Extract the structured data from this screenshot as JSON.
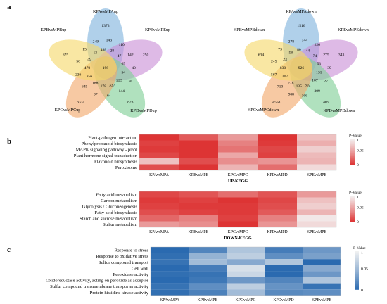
{
  "panels": {
    "a": "a",
    "b": "b",
    "c": "c"
  },
  "colors": {
    "venn": [
      "#7fb3dd",
      "#c98fd6",
      "#7fcf96",
      "#f2a86a",
      "#f6d86a"
    ],
    "up_low": "#dd3434",
    "up_high": "#f4f4f4",
    "go_low": "#2a6ab0",
    "go_high": "#f2f2f2"
  },
  "venn_up": {
    "sets": [
      "KPAvsMPAup",
      "KPEvsMPEup",
      "KPDvsMPDup",
      "KPCvsMPCup",
      "KPBvsMPBup"
    ],
    "unique": [
      "1373",
      "250",
      "823",
      "3331",
      "675"
    ],
    "inner": [
      "143",
      "28",
      "110",
      "47",
      "142",
      "65",
      "40",
      "54",
      "56",
      "223",
      "144",
      "337",
      "64",
      "178",
      "97",
      "188",
      "645",
      "856",
      "236",
      "470",
      "56",
      "49",
      "15",
      "13",
      "249",
      "488"
    ],
    "center": "198"
  },
  "venn_down": {
    "sets": [
      "KPAvsMPAdown",
      "KPEvsMPEdown",
      "KPDvsMPDdown",
      "KPCvsMPCdown",
      "KPBvsMPBdown"
    ],
    "unique": [
      "1516",
      "343",
      "405",
      "4558",
      "634"
    ],
    "inner": [
      "144",
      "44",
      "226",
      "74",
      "275",
      "53",
      "39",
      "131",
      "27",
      "107",
      "309",
      "802",
      "166",
      "135",
      "908",
      "278",
      "710",
      "307",
      "567",
      "830",
      "245",
      "23",
      "73",
      "58",
      "278",
      "80"
    ],
    "center": "926"
  },
  "heat_up": {
    "title": "UP-KEGG",
    "rows": [
      "Plant-pathogen interaction",
      "Phenylpropanoid biosynthesis",
      "MAPK signaling pathway - plant",
      "Plant hormone signal transduction",
      "Flavonoid biosynthesis",
      "Peroxisome"
    ],
    "cols": [
      "KPAvsMPA",
      "KPBvsMPB",
      "KPCvsMPC",
      "KPDvsMPD",
      "KPEvsMPE"
    ],
    "values": [
      [
        0.0,
        0.06,
        0.16,
        0.0,
        0.22
      ],
      [
        0.02,
        0.0,
        0.12,
        0.01,
        0.19
      ],
      [
        0.01,
        0.0,
        0.1,
        0.03,
        0.24
      ],
      [
        0.03,
        0.0,
        0.18,
        0.02,
        0.21
      ],
      [
        0.22,
        0.04,
        0.14,
        0.15,
        0.2
      ],
      [
        0.04,
        0.0,
        0.2,
        0.09,
        0.26
      ]
    ],
    "legend_title": "P-Value",
    "legend_ticks": [
      "1",
      "0.05",
      "0"
    ]
  },
  "heat_down": {
    "title": "DOWN-KEGG",
    "rows": [
      "Fatty acid metabolism",
      "Carbon metabolism",
      "Glycolysis / Gluconeogenesis",
      "Fatty acid biosynthesis",
      "Starch and sucrose metabolism",
      "Sulfur metabolism"
    ],
    "cols": [
      "KPAvsMPA",
      "KPBvsMPB",
      "KPCvsMPC",
      "KPDvsMPD",
      "KPEvsMPE"
    ],
    "values": [
      [
        0.03,
        0.05,
        0.09,
        0.05,
        0.16
      ],
      [
        0.01,
        0.02,
        0.0,
        0.03,
        0.22
      ],
      [
        0.02,
        0.01,
        0.01,
        0.04,
        0.24
      ],
      [
        0.04,
        0.02,
        0.01,
        0.06,
        0.2
      ],
      [
        0.08,
        0.12,
        0.02,
        0.12,
        0.28
      ],
      [
        0.16,
        0.14,
        0.0,
        0.15,
        0.26
      ]
    ],
    "legend_title": "P-Value",
    "legend_ticks": [
      "1",
      "0.05",
      "0"
    ]
  },
  "heat_go": {
    "rows": [
      "Response to stress",
      "Response to oxidative stress",
      "Sulfur compound transport",
      "Cell wall",
      "Peroxidase activity",
      "Oxidoreductase activity, acting on peroxide as acceptor",
      "Sulfur compound transmembrane transporter activity",
      "Protein histidine kinase activity"
    ],
    "cols": [
      "KPAvsMPA",
      "KPBvsMPB",
      "KPCvsMPC",
      "KPDvsMPD",
      "KPEvsMPE"
    ],
    "values": [
      [
        0.0,
        0.06,
        0.2,
        0.04,
        0.1
      ],
      [
        0.01,
        0.16,
        0.22,
        0.08,
        0.12
      ],
      [
        0.02,
        0.18,
        0.14,
        0.2,
        0.0
      ],
      [
        0.0,
        0.04,
        0.26,
        0.0,
        0.14
      ],
      [
        0.01,
        0.02,
        0.24,
        0.0,
        0.1
      ],
      [
        0.0,
        0.03,
        0.1,
        0.06,
        0.2
      ],
      [
        0.02,
        0.08,
        0.22,
        0.09,
        0.02
      ],
      [
        0.01,
        0.05,
        0.18,
        0.07,
        0.08
      ]
    ],
    "legend_title": "P-Value",
    "legend_ticks": [
      "1",
      "0.05",
      "0"
    ]
  }
}
